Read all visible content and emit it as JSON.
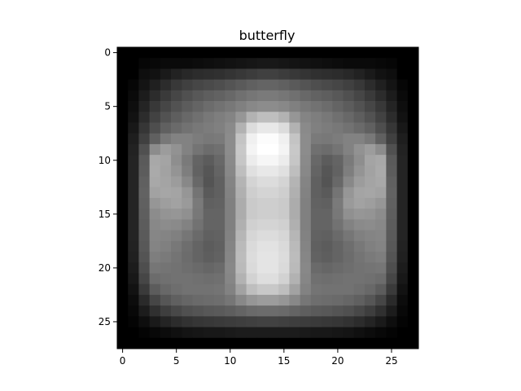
{
  "chart_data": {
    "type": "heatmap",
    "title": "butterfly",
    "colormap": "gray",
    "rows": 28,
    "cols": 28,
    "xlim": [
      -0.5,
      27.5
    ],
    "ylim": [
      27.5,
      -0.5
    ],
    "xticks": [
      0,
      5,
      10,
      15,
      20,
      25
    ],
    "yticks": [
      0,
      5,
      10,
      15,
      20,
      25
    ],
    "xtick_labels": [
      "0",
      "5",
      "10",
      "15",
      "20",
      "25"
    ],
    "ytick_labels": [
      "0",
      "5",
      "10",
      "15",
      "20",
      "25"
    ],
    "value_range": [
      0,
      255
    ],
    "values": [
      [
        0,
        0,
        0,
        0,
        0,
        0,
        0,
        0,
        0,
        0,
        0,
        0,
        0,
        0,
        0,
        0,
        0,
        0,
        0,
        0,
        0,
        0,
        0,
        0,
        0,
        0,
        0,
        0
      ],
      [
        0,
        0,
        6,
        8,
        10,
        10,
        10,
        12,
        14,
        16,
        18,
        20,
        22,
        24,
        24,
        22,
        20,
        18,
        16,
        14,
        12,
        10,
        10,
        10,
        8,
        6,
        0,
        0
      ],
      [
        0,
        0,
        14,
        18,
        26,
        34,
        40,
        44,
        46,
        48,
        52,
        56,
        60,
        64,
        64,
        60,
        56,
        52,
        48,
        46,
        44,
        40,
        34,
        26,
        18,
        14,
        0,
        0
      ],
      [
        0,
        6,
        20,
        32,
        44,
        56,
        64,
        70,
        74,
        78,
        84,
        90,
        96,
        100,
        100,
        96,
        90,
        84,
        78,
        74,
        70,
        64,
        56,
        44,
        32,
        20,
        6,
        0
      ],
      [
        0,
        10,
        28,
        44,
        58,
        70,
        80,
        88,
        94,
        98,
        104,
        112,
        118,
        122,
        122,
        118,
        112,
        104,
        98,
        94,
        88,
        80,
        70,
        58,
        44,
        28,
        10,
        0
      ],
      [
        0,
        14,
        36,
        56,
        70,
        82,
        92,
        100,
        108,
        114,
        120,
        128,
        136,
        140,
        140,
        136,
        128,
        120,
        114,
        108,
        100,
        92,
        82,
        70,
        56,
        36,
        14,
        0
      ],
      [
        0,
        18,
        44,
        66,
        82,
        94,
        104,
        112,
        120,
        126,
        132,
        150,
        178,
        190,
        190,
        178,
        150,
        132,
        126,
        120,
        112,
        104,
        94,
        82,
        66,
        44,
        18,
        0
      ],
      [
        0,
        24,
        54,
        78,
        96,
        106,
        114,
        120,
        124,
        128,
        138,
        178,
        220,
        232,
        232,
        220,
        178,
        138,
        128,
        124,
        120,
        114,
        106,
        96,
        78,
        54,
        24,
        0
      ],
      [
        0,
        30,
        64,
        96,
        120,
        130,
        130,
        124,
        120,
        122,
        140,
        196,
        240,
        252,
        252,
        240,
        196,
        140,
        122,
        120,
        124,
        130,
        130,
        120,
        96,
        64,
        30,
        0
      ],
      [
        0,
        34,
        80,
        140,
        156,
        146,
        130,
        116,
        108,
        112,
        140,
        200,
        244,
        255,
        255,
        244,
        200,
        140,
        112,
        108,
        116,
        130,
        146,
        156,
        140,
        80,
        34,
        0
      ],
      [
        0,
        36,
        90,
        168,
        164,
        142,
        122,
        100,
        92,
        104,
        138,
        198,
        236,
        246,
        246,
        236,
        198,
        138,
        104,
        92,
        100,
        122,
        142,
        164,
        168,
        90,
        36,
        0
      ],
      [
        0,
        36,
        92,
        170,
        162,
        148,
        126,
        98,
        86,
        100,
        136,
        190,
        224,
        232,
        232,
        224,
        190,
        136,
        100,
        86,
        98,
        126,
        148,
        162,
        170,
        92,
        36,
        0
      ],
      [
        0,
        36,
        96,
        168,
        164,
        156,
        136,
        104,
        84,
        96,
        132,
        180,
        212,
        220,
        220,
        212,
        180,
        132,
        96,
        84,
        104,
        136,
        156,
        164,
        168,
        96,
        36,
        0
      ],
      [
        0,
        36,
        98,
        162,
        166,
        164,
        150,
        116,
        90,
        96,
        130,
        176,
        206,
        212,
        212,
        206,
        176,
        130,
        96,
        90,
        116,
        150,
        164,
        166,
        162,
        98,
        36,
        0
      ],
      [
        0,
        36,
        96,
        150,
        158,
        162,
        154,
        122,
        96,
        98,
        128,
        172,
        202,
        206,
        206,
        202,
        172,
        128,
        98,
        96,
        122,
        154,
        162,
        158,
        150,
        96,
        36,
        0
      ],
      [
        0,
        36,
        94,
        140,
        148,
        150,
        144,
        120,
        100,
        100,
        128,
        172,
        202,
        206,
        206,
        202,
        172,
        128,
        100,
        100,
        120,
        144,
        150,
        148,
        140,
        94,
        36,
        0
      ],
      [
        0,
        36,
        92,
        136,
        140,
        138,
        130,
        114,
        100,
        100,
        128,
        176,
        208,
        212,
        212,
        208,
        176,
        128,
        100,
        100,
        114,
        130,
        138,
        140,
        136,
        92,
        36,
        0
      ],
      [
        0,
        36,
        90,
        134,
        132,
        128,
        118,
        106,
        96,
        98,
        130,
        182,
        214,
        220,
        220,
        214,
        182,
        130,
        98,
        96,
        106,
        118,
        128,
        132,
        134,
        90,
        36,
        0
      ],
      [
        0,
        34,
        88,
        132,
        128,
        120,
        110,
        100,
        92,
        96,
        132,
        186,
        218,
        226,
        226,
        218,
        186,
        132,
        96,
        92,
        100,
        110,
        120,
        128,
        132,
        88,
        34,
        0
      ],
      [
        0,
        32,
        84,
        126,
        122,
        116,
        108,
        100,
        94,
        98,
        134,
        188,
        220,
        228,
        228,
        220,
        188,
        134,
        98,
        94,
        100,
        108,
        116,
        122,
        126,
        84,
        32,
        0
      ],
      [
        0,
        28,
        78,
        118,
        116,
        114,
        110,
        106,
        102,
        106,
        136,
        186,
        218,
        228,
        228,
        218,
        186,
        136,
        106,
        102,
        106,
        110,
        114,
        116,
        118,
        78,
        28,
        0
      ],
      [
        0,
        24,
        70,
        108,
        112,
        114,
        114,
        112,
        110,
        112,
        134,
        178,
        210,
        222,
        222,
        210,
        178,
        134,
        112,
        110,
        112,
        114,
        114,
        112,
        108,
        70,
        24,
        0
      ],
      [
        0,
        18,
        58,
        92,
        104,
        110,
        114,
        114,
        114,
        116,
        130,
        162,
        190,
        200,
        200,
        190,
        162,
        130,
        116,
        114,
        114,
        114,
        110,
        104,
        92,
        58,
        18,
        0
      ],
      [
        0,
        12,
        42,
        70,
        86,
        96,
        102,
        106,
        108,
        110,
        118,
        136,
        150,
        156,
        156,
        150,
        136,
        118,
        110,
        108,
        106,
        102,
        96,
        86,
        70,
        42,
        12,
        0
      ],
      [
        0,
        8,
        28,
        48,
        62,
        72,
        80,
        84,
        88,
        90,
        94,
        100,
        106,
        108,
        108,
        106,
        100,
        94,
        90,
        88,
        84,
        80,
        72,
        62,
        48,
        28,
        8,
        0
      ],
      [
        0,
        4,
        14,
        26,
        36,
        44,
        50,
        54,
        56,
        58,
        60,
        62,
        64,
        66,
        66,
        64,
        62,
        60,
        58,
        56,
        54,
        50,
        44,
        36,
        26,
        14,
        4,
        0
      ],
      [
        0,
        0,
        4,
        8,
        12,
        16,
        20,
        22,
        24,
        24,
        26,
        28,
        28,
        28,
        28,
        28,
        28,
        26,
        24,
        24,
        22,
        20,
        16,
        12,
        8,
        4,
        0,
        0
      ],
      [
        0,
        0,
        0,
        0,
        0,
        0,
        0,
        0,
        0,
        0,
        0,
        0,
        0,
        0,
        0,
        0,
        0,
        0,
        0,
        0,
        0,
        0,
        0,
        0,
        0,
        0,
        0,
        0
      ]
    ]
  }
}
